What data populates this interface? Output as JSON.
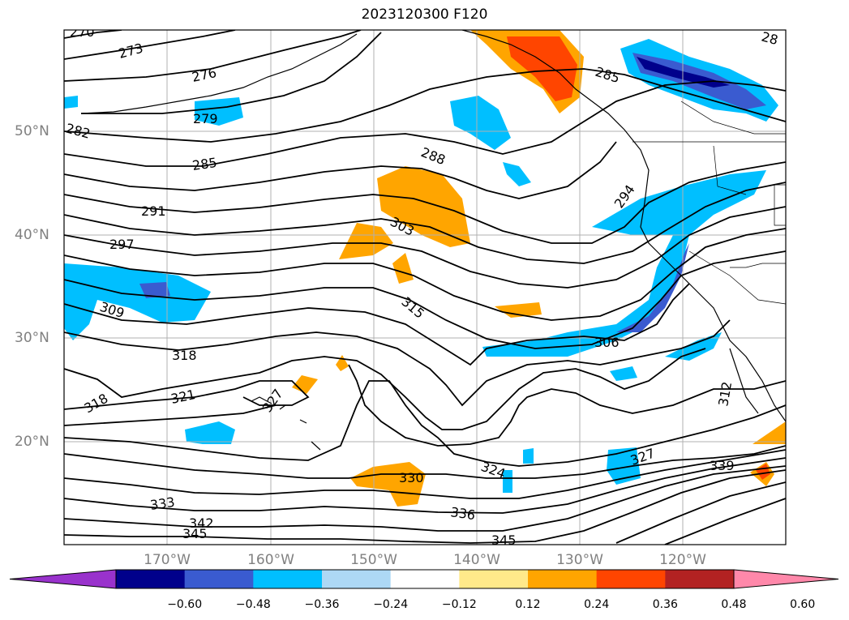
{
  "title": "2023120300 F120",
  "lat_labels": [
    "50°N",
    "40°N",
    "30°N",
    "20°N"
  ],
  "lon_labels": [
    "170°W",
    "160°W",
    "150°W",
    "140°W",
    "130°W",
    "120°W"
  ],
  "contour_labels": [
    "270",
    "273",
    "276",
    "279",
    "282",
    "285",
    "288",
    "291",
    "294",
    "297",
    "303",
    "306",
    "309",
    "312",
    "315",
    "318",
    "318",
    "321",
    "324",
    "327",
    "327",
    "330",
    "333",
    "336",
    "339",
    "342",
    "345",
    "345",
    "285",
    "28"
  ],
  "colorbar": {
    "ticks": [
      "−0.60",
      "−0.48",
      "−0.36",
      "−0.24",
      "−0.12",
      "0.12",
      "0.24",
      "0.36",
      "0.48",
      "0.60"
    ],
    "colors": [
      "#9932cc",
      "#00008b",
      "#3a5bd0",
      "#00bfff",
      "#add8f5",
      "#ffffff",
      "#ffe98a",
      "#ffa500",
      "#ff4500",
      "#b22222",
      "#ff88aa"
    ]
  }
}
